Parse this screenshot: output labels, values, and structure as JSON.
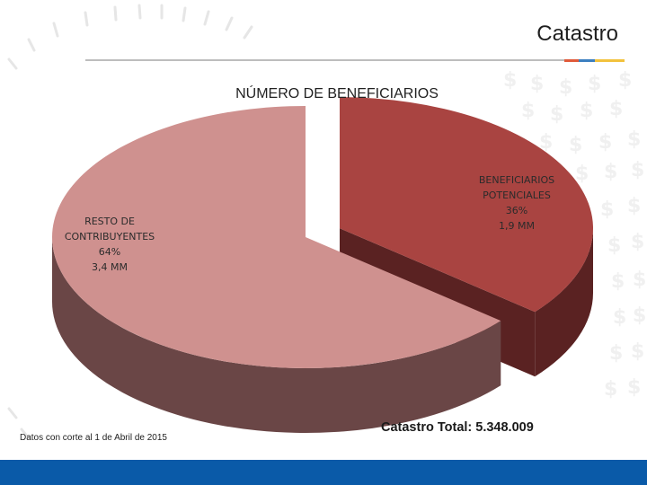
{
  "slide": {
    "title": "Catastro",
    "footnote": "Datos con corte al 1 de Abril de 2015",
    "total": "Catastro Total: 5.348.009",
    "accent_colors": [
      "#e05a3a",
      "#3c7fc0",
      "#f2c23d",
      "#0a5aa8"
    ]
  },
  "chart_data": {
    "type": "pie",
    "title": "NÚMERO DE BENEFICIARIOS",
    "three_d": true,
    "exploded": "BENEFICIARIOS POTENCIALES",
    "categories": [
      "RESTO DE CONTRIBUYENTES",
      "BENEFICIARIOS POTENCIALES"
    ],
    "values": [
      64,
      36
    ],
    "value_labels": [
      "3,4 MM",
      "1,9 MM"
    ],
    "percent_labels": [
      "64%",
      "36%"
    ],
    "colors": [
      "#cf918f",
      "#a94441"
    ],
    "side_colors": [
      "#6a4646",
      "#5a2222"
    ],
    "label_lines": [
      [
        "RESTO DE",
        "CONTRIBUYENTES",
        "64%",
        "3,4 MM"
      ],
      [
        "BENEFICIARIOS",
        "POTENCIALES",
        "36%",
        "1,9 MM"
      ]
    ]
  }
}
